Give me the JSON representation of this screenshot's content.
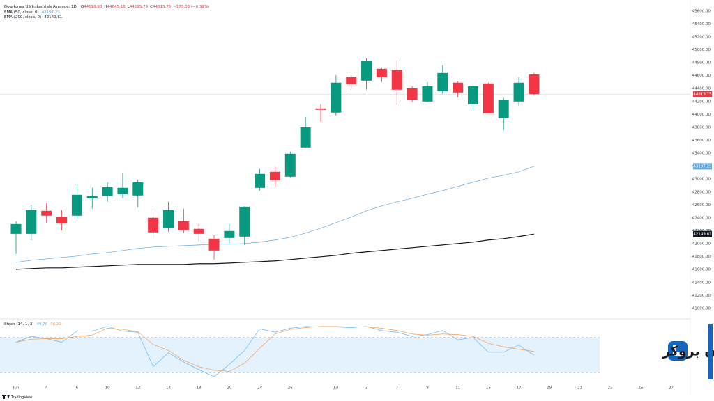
{
  "chart_data": {
    "type": "candlestick",
    "title": "Dow Jones US Industrials Average, 1D",
    "ohlc_labels": [
      "O",
      "H",
      "L",
      "C"
    ],
    "change": "−175.03 (−0.39%)",
    "categories": [
      "Jun",
      null,
      "4",
      null,
      "6",
      null,
      "10",
      null,
      "12",
      null,
      "14",
      null,
      "18",
      null,
      "20",
      null,
      "24",
      null,
      "26",
      null,
      null,
      "Jul",
      null,
      "3",
      null,
      "7",
      null,
      "9",
      null,
      "11",
      null,
      "15",
      null,
      "17",
      null
    ],
    "future_labels": [
      "19",
      "21",
      "23",
      "25",
      "27"
    ],
    "up_color": "#089981",
    "down_color": "#f23645",
    "candles": {
      "open": [
        42153,
        42153,
        42509,
        42412,
        42434,
        42703,
        42735,
        42768,
        42746,
        42402,
        42240,
        42348,
        42229,
        42078,
        42089,
        42110,
        42864,
        43112,
        43037,
        43489,
        44092,
        44028,
        44577,
        44523,
        44706,
        44685,
        44405,
        44200,
        44361,
        44491,
        44157,
        44480,
        43941,
        44200,
        44618.98
      ],
      "high": [
        42348,
        42595,
        42627,
        42520,
        42918,
        42865,
        42951,
        43102,
        42994,
        42542,
        42649,
        42542,
        42304,
        42132,
        42304,
        42584,
        43155,
        43188,
        43425,
        43963,
        44157,
        44609,
        44620,
        44868,
        44728,
        44835,
        44437,
        44502,
        44760,
        44512,
        44470,
        44491,
        44254,
        44577,
        44645.16
      ],
      "low": [
        41841,
        42057,
        42326,
        42208,
        42391,
        42542,
        42649,
        42703,
        42563,
        42068,
        42186,
        42164,
        42035,
        41755,
        42003,
        41981,
        42821,
        42897,
        43015,
        43478,
        43888,
        43985,
        44383,
        44383,
        44501,
        44146,
        44189,
        44189,
        44318,
        44264,
        44082,
        44017,
        43758,
        44135,
        44295.79
      ],
      "close": [
        42304,
        42520,
        42434,
        42315,
        42757,
        42735,
        42875,
        42865,
        42951,
        42175,
        42520,
        42208,
        42153,
        41895,
        42197,
        42573,
        43080,
        42983,
        43392,
        43801,
        44071,
        44491,
        44469,
        44825,
        44577,
        44383,
        44222,
        44437,
        44641,
        44340,
        44437,
        44017,
        44222,
        44491,
        44313.75
      ]
    },
    "series": [
      {
        "name": "EMA (50, close, 0)",
        "color": "#5fa8e0",
        "values": [
          41712,
          41744,
          41766,
          41787,
          41809,
          41841,
          41863,
          41895,
          41927,
          41949,
          41960,
          41970,
          41981,
          41992,
          41992,
          42003,
          42024,
          42057,
          42100,
          42164,
          42240,
          42326,
          42412,
          42509,
          42584,
          42649,
          42703,
          42767,
          42821,
          42886,
          42951,
          43015,
          43058,
          43112,
          43197.23
        ]
      },
      {
        "name": "EMA (200, close, 0)",
        "color": "#131722",
        "values": [
          41604,
          41615,
          41626,
          41626,
          41637,
          41647,
          41658,
          41669,
          41680,
          41680,
          41680,
          41680,
          41691,
          41691,
          41701,
          41712,
          41723,
          41734,
          41755,
          41777,
          41798,
          41820,
          41852,
          41874,
          41895,
          41917,
          41938,
          41960,
          41981,
          42003,
          42024,
          42057,
          42078,
          42111,
          42149.61
        ]
      }
    ],
    "ylim": [
      40870,
      45770
    ],
    "yticks": [
      {
        "value": 41000,
        "label": "41000.00"
      },
      {
        "value": 41200,
        "label": "41200.00"
      },
      {
        "value": 41400,
        "label": "41400.00"
      },
      {
        "value": 41600,
        "label": "41600.00"
      },
      {
        "value": 41800,
        "label": "41800.00"
      },
      {
        "value": 42000,
        "label": "42000.00"
      },
      {
        "value": 42200,
        "label": "42200.00"
      },
      {
        "value": 42400,
        "label": "42400.00"
      },
      {
        "value": 42600,
        "label": "42600.00"
      },
      {
        "value": 42800,
        "label": "42800.00"
      },
      {
        "value": 43000,
        "label": "43000.00"
      },
      {
        "value": 43200,
        "label": "43200.00"
      },
      {
        "value": 43400,
        "label": "43400.00"
      },
      {
        "value": 43600,
        "label": "43600.00"
      },
      {
        "value": 43800,
        "label": "43800.00"
      },
      {
        "value": 44000,
        "label": "44000.00"
      },
      {
        "value": 44200,
        "label": "44200.00"
      },
      {
        "value": 44400,
        "label": "44400.00"
      },
      {
        "value": 44600,
        "label": "44600.00"
      },
      {
        "value": 44800,
        "label": "44800.00"
      },
      {
        "value": 45000,
        "label": "45000.00"
      },
      {
        "value": 45200,
        "label": "45200.00"
      },
      {
        "value": 45400,
        "label": "45400.00"
      },
      {
        "value": 45600,
        "label": "45600.00"
      }
    ],
    "stoch": {
      "name": "Stoch (14, 1, 3)",
      "ylim": [
        0,
        100
      ],
      "bands": [
        20,
        80
      ],
      "band_fill": "#e3f2fd",
      "series": [
        {
          "color": "#64b5f6",
          "values": [
            72,
            82,
            78,
            72,
            91,
            91,
            99,
            91,
            89,
            30,
            54,
            38,
            25,
            13,
            34,
            58,
            95,
            89,
            96,
            99,
            98,
            98,
            97,
            99,
            92,
            89,
            82,
            85,
            92,
            76,
            80,
            55,
            55,
            67,
            49.76
          ]
        },
        {
          "color": "#f59d4c",
          "values": [
            72,
            77,
            78,
            78,
            82,
            84,
            96,
            94,
            90,
            68,
            58,
            41,
            30,
            24,
            22,
            36,
            62,
            86,
            94,
            97,
            99,
            99,
            98,
            98,
            96,
            92,
            86,
            84,
            86,
            85,
            82,
            70,
            64,
            60,
            56.21
          ]
        }
      ]
    },
    "watermark": "لیان بروکر",
    "brand": "TradingView"
  }
}
